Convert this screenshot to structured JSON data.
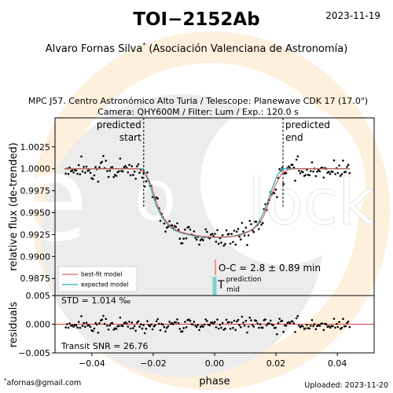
{
  "header": {
    "title": "TOI−2152Ab",
    "date": "2023-11-19",
    "observer": "Alvaro Fornas Silva",
    "observer_mark": "*",
    "affiliation": "(Asociación Valenciana de Astronomía)",
    "subtitle_line1": "MPC J57. Centro Astronómico Alto Turia / Telescope: Planewave CDK 17 (17.0\")",
    "subtitle_line2": "Camera: QHY600M / Filter: Lum / Exp.: 120.0 s"
  },
  "footer": {
    "email": "afornas@gmail.com",
    "email_mark": "*",
    "uploaded": "Uploaded: 2023-11-20"
  },
  "watermark": {
    "left": "e",
    "mid": "o",
    "right": "lock"
  },
  "annotations": {
    "predicted_start": [
      "predicted",
      "start"
    ],
    "predicted_end": [
      "predicted",
      "end"
    ],
    "oc": "O-C = 2.8 ± 0.89 min",
    "tmid_T": "T",
    "tmid_sup": "prediction",
    "tmid_sub": "mid",
    "std": "STD = 1.014 ‰",
    "snr": "Transit SNR = 26.76"
  },
  "colors": {
    "bestfit": "#e8433c",
    "expected": "#2bb3b8",
    "points": "#000000",
    "tmid_bar": "#7fd3cf"
  },
  "chart_data": [
    {
      "type": "scatter",
      "panel": "main",
      "ylabel": "relative flux (de-trended)",
      "xlim": [
        -0.052,
        0.052
      ],
      "ylim": [
        0.98555,
        1.0058
      ],
      "yticks": [
        0.9875,
        0.99,
        0.9925,
        0.995,
        0.9975,
        1.0,
        1.0025
      ],
      "ytick_labels": [
        "0.9875",
        "0.9900",
        "0.9925",
        "0.9950",
        "0.9975",
        "1.0000",
        "1.0025"
      ],
      "predicted_start": -0.0231,
      "predicted_end": 0.0223,
      "legend": [
        "best-fit model",
        "expected model"
      ],
      "legend_position": "lower-left",
      "series": [
        {
          "name": "best-fit model",
          "x": [
            -0.049,
            -0.0245,
            -0.0225,
            -0.0205,
            -0.0185,
            -0.0165,
            -0.0145,
            -0.012,
            -0.008,
            -0.004,
            0.0,
            0.004,
            0.008,
            0.011,
            0.014,
            0.016,
            0.018,
            0.02,
            0.022,
            0.024,
            0.026,
            0.044
          ],
          "y": [
            1.0,
            1.0,
            0.9995,
            0.998,
            0.9957,
            0.9943,
            0.9935,
            0.9929,
            0.9925,
            0.9923,
            0.9922,
            0.9922,
            0.9924,
            0.9928,
            0.9935,
            0.9946,
            0.9965,
            0.9983,
            0.9995,
            0.9999,
            1.0,
            1.0
          ]
        },
        {
          "name": "expected model",
          "x": [
            -0.049,
            -0.0232,
            -0.0212,
            -0.0192,
            -0.0172,
            -0.0152,
            -0.0132,
            -0.01,
            -0.006,
            -0.002,
            0.002,
            0.006,
            0.009,
            0.012,
            0.014,
            0.016,
            0.0185,
            0.0205,
            0.022,
            0.044
          ],
          "y": [
            1.0,
            1.0,
            0.9983,
            0.996,
            0.9945,
            0.9936,
            0.993,
            0.9926,
            0.9923,
            0.9922,
            0.9922,
            0.9923,
            0.9926,
            0.993,
            0.9937,
            0.995,
            0.9975,
            0.9993,
            1.0,
            1.0
          ]
        }
      ],
      "tmid_prediction": 0.0,
      "oc_marker": 0.0
    },
    {
      "type": "scatter",
      "panel": "residuals",
      "xlabel": "phase",
      "ylabel": "residuals",
      "xlim": [
        -0.052,
        0.052
      ],
      "ylim": [
        -0.005,
        0.005
      ],
      "xticks": [
        -0.04,
        -0.02,
        0.0,
        0.02,
        0.04
      ],
      "xtick_labels": [
        "−0.04",
        "−0.02",
        "0.00",
        "0.02",
        "0.04"
      ],
      "yticks": [
        -0.005,
        0.0,
        0.005
      ],
      "ytick_labels": [
        "−0.005",
        "0.000",
        "0.005"
      ]
    }
  ]
}
